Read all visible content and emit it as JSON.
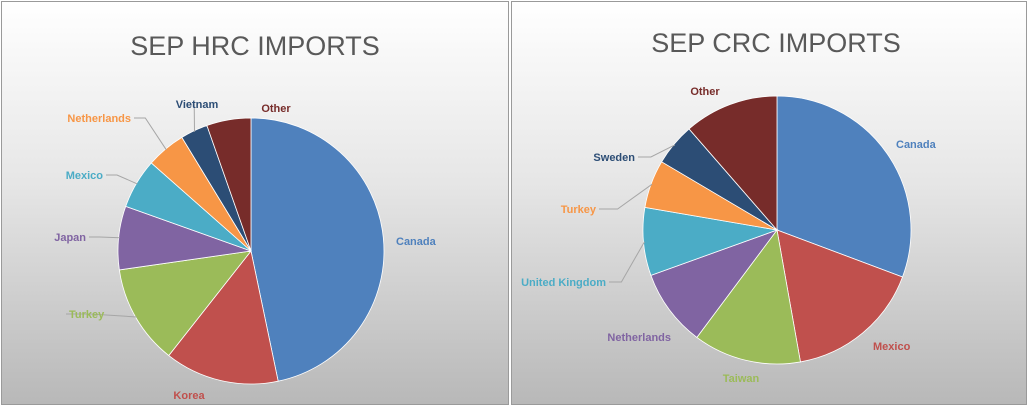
{
  "chart_data": [
    {
      "type": "pie",
      "title": "SEP HRC IMPORTS",
      "start_angle_deg": 0,
      "direction": "clockwise",
      "categories": [
        "Canada",
        "Korea",
        "Turkey",
        "Japan",
        "Mexico",
        "Netherlands",
        "Vietnam",
        "Other"
      ],
      "values": [
        47.8,
        14.2,
        12.4,
        7.9,
        6.2,
        4.9,
        3.4,
        5.5
      ],
      "colors": [
        "#4f81bd",
        "#c0504d",
        "#9bbb59",
        "#8064a2",
        "#4bacc6",
        "#f79646",
        "#2c4d75",
        "#772c2a"
      ],
      "legend": "none"
    },
    {
      "type": "pie",
      "title": "SEP CRC IMPORTS",
      "start_angle_deg": 0,
      "direction": "clockwise",
      "categories": [
        "Canada",
        "Mexico",
        "Taiwan",
        "Netherlands",
        "United Kingdom",
        "Turkey",
        "Sweden",
        "Other"
      ],
      "values": [
        30.7,
        16.5,
        13.0,
        9.3,
        8.2,
        5.8,
        5.1,
        11.4
      ],
      "other_value": 11.4,
      "colors": [
        "#4f81bd",
        "#c0504d",
        "#9bbb59",
        "#8064a2",
        "#4bacc6",
        "#f79646",
        "#2c4d75",
        "#772c2a"
      ],
      "legend": "none"
    }
  ]
}
